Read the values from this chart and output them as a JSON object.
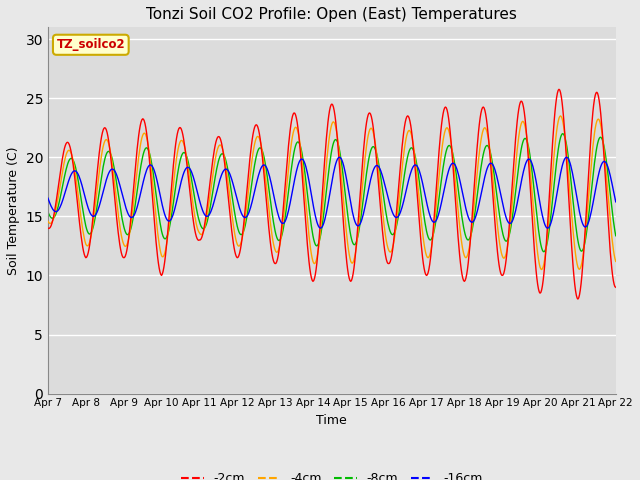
{
  "title": "Tonzi Soil CO2 Profile: Open (East) Temperatures",
  "xlabel": "Time",
  "ylabel": "Soil Temperature (C)",
  "legend_label": "TZ_soilco2",
  "ylim": [
    0,
    31
  ],
  "yticks": [
    0,
    5,
    10,
    15,
    20,
    25,
    30
  ],
  "x_tick_labels": [
    "Apr 7",
    "Apr 8",
    "Apr 9",
    "Apr 10",
    "Apr 11",
    "Apr 12",
    "Apr 13",
    "Apr 14",
    "Apr 15",
    "Apr 16",
    "Apr 17",
    "Apr 18",
    "Apr 19",
    "Apr 20",
    "Apr 21",
    "Apr 22"
  ],
  "series": {
    "-2cm": {
      "color": "#FF0000"
    },
    "-4cm": {
      "color": "#FFA500"
    },
    "-8cm": {
      "color": "#00BB00"
    },
    "-16cm": {
      "color": "#0000FF"
    }
  },
  "fig_bg_color": "#E8E8E8",
  "plot_bg_color": "#DCDCDC",
  "grid_color": "#FFFFFF",
  "legend_box_facecolor": "#FFFFCC",
  "legend_box_edgecolor": "#CCAA00"
}
